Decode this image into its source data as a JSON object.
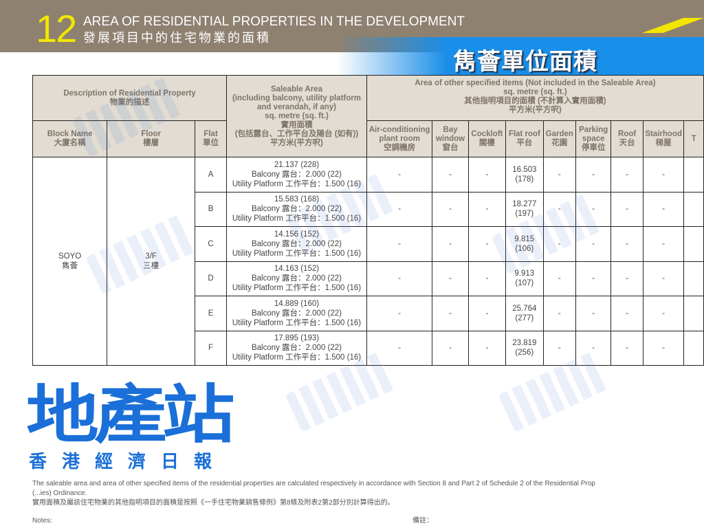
{
  "header": {
    "section_number": "12",
    "title_en": "AREA OF RESIDENTIAL PROPERTIES IN THE DEVELOPMENT",
    "title_zh": "發展項目中的住宅物業的面積",
    "banner": "雋薈單位面積"
  },
  "table": {
    "h_desc": "Description of Residential Property",
    "h_desc_zh": "物業的描述",
    "h_saleable": [
      "Saleable Area",
      "(including balcony, utility platform",
      "and verandah, if any)",
      "sq. metre (sq. ft.)",
      "實用面積",
      "(包括露台、工作平台及陽台 (如有))",
      "平方米(平方呎)"
    ],
    "h_other": [
      "Area of other specified items (Not included in the Saleable Area)",
      "sq. metre (sq. ft.)",
      "其他指明項目的面積 (不計算入實用面積)",
      "平方米(平方呎)"
    ],
    "h_block": [
      "Block Name",
      "大廈名稱"
    ],
    "h_floor": [
      "Floor",
      "樓層"
    ],
    "h_flat": [
      "Flat",
      "單位"
    ],
    "other_cols": [
      [
        "Air-conditioning",
        "plant room",
        "空調機房"
      ],
      [
        "Bay",
        "window",
        "窗台"
      ],
      [
        "Cockloft",
        "閣樓"
      ],
      [
        "Flat roof",
        "平台"
      ],
      [
        "Garden",
        "花園"
      ],
      [
        "Parking",
        "space",
        "停車位"
      ],
      [
        "Roof",
        "天台"
      ],
      [
        "Stairhood",
        "梯屋"
      ],
      [
        "T"
      ]
    ],
    "block": [
      "SOYO",
      "雋薈"
    ],
    "floor": [
      "3/F",
      "三樓"
    ],
    "rows": [
      {
        "flat": "A",
        "saleable": "21.137 (228)",
        "balcony": "Balcony 露台：2.000 (22)",
        "utility": "Utility Platform 工作平台：1.500 (16)",
        "ac": "-",
        "bay": "-",
        "cockloft": "-",
        "flat_roof": [
          "16.503",
          "(178)"
        ],
        "garden": "-",
        "parking": "-",
        "roof": "-",
        "stairhood": "-"
      },
      {
        "flat": "B",
        "saleable": "15.583 (168)",
        "balcony": "Balcony 露台：2.000 (22)",
        "utility": "Utility Platform 工作平台：1.500 (16)",
        "ac": "-",
        "bay": "-",
        "cockloft": "-",
        "flat_roof": [
          "18.277",
          "(197)"
        ],
        "garden": "-",
        "parking": "-",
        "roof": "-",
        "stairhood": "-"
      },
      {
        "flat": "C",
        "saleable": "14.156 (152)",
        "balcony": "Balcony 露台：2.000 (22)",
        "utility": "Utility Platform 工作平台：1.500 (16)",
        "ac": "-",
        "bay": "-",
        "cockloft": "-",
        "flat_roof": [
          "9.815",
          "(106)"
        ],
        "garden": "-",
        "parking": "-",
        "roof": "-",
        "stairhood": "-"
      },
      {
        "flat": "D",
        "saleable": "14.163 (152)",
        "balcony": "Balcony 露台：2.000 (22)",
        "utility": "Utility Platform 工作平台：1.500 (16)",
        "ac": "-",
        "bay": "-",
        "cockloft": "-",
        "flat_roof": [
          "9.913",
          "(107)"
        ],
        "garden": "-",
        "parking": "-",
        "roof": "-",
        "stairhood": "-"
      },
      {
        "flat": "E",
        "saleable": "14.889 (160)",
        "balcony": "Balcony 露台：2.000 (22)",
        "utility": "Utility Platform 工作平台：1.500 (16)",
        "ac": "-",
        "bay": "-",
        "cockloft": "-",
        "flat_roof": [
          "25.764",
          "(277)"
        ],
        "garden": "-",
        "parking": "-",
        "roof": "-",
        "stairhood": "-"
      },
      {
        "flat": "F",
        "saleable": "17.895 (193)",
        "balcony": "Balcony 露台：2.000 (22)",
        "utility": "Utility Platform 工作平台：1.500 (16)",
        "ac": "-",
        "bay": "-",
        "cockloft": "-",
        "flat_roof": [
          "23.819",
          "(256)"
        ],
        "garden": "-",
        "parking": "-",
        "roof": "-",
        "stairhood": "-"
      }
    ]
  },
  "footer": {
    "note_en_1": "The saleable area and area of other specified items of the residential properties are calculated respectively in accordance with Section 8 and Part 2 of Schedule 2 of the Residential Prop",
    "note_en_2": "(...ies) Ordinance.",
    "note_zh": "實用面積及屬該住宅物業的其他指明項目的面積是按照《一手住宅物業銷售條例》第8條及附表2第2部分別計算得出的。",
    "notes_en": "Notes:",
    "notes_zh": "備註："
  },
  "logo": {
    "main": "地產站",
    "sub": "香港經濟日報",
    "watermark": "地產站"
  },
  "colors": {
    "header_bg": "#8f8170",
    "banner": "#1790ea",
    "accent_yellow": "#f2e600",
    "table_header": "#e2dcd2",
    "logo_blue": "#1a6fd8"
  }
}
